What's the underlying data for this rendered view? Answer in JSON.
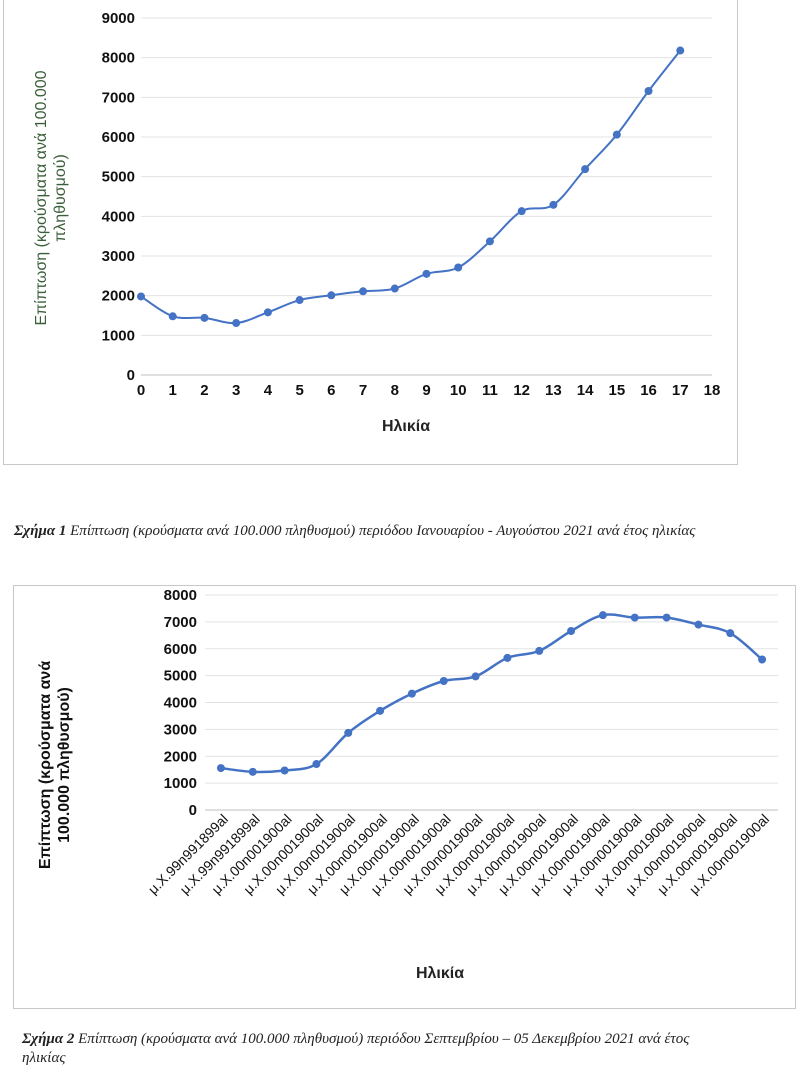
{
  "chart_data": [
    {
      "type": "line",
      "title": "",
      "xlabel": "Ηλικία",
      "ylabel": "Επίπτωση (κρούσματα ανά 100.000 πληθυσμού)",
      "ylabel_lines": [
        "Επίπτωση (κρούσματα ανά 100.000",
        "πληθυσμού)"
      ],
      "x": [
        0,
        1,
        2,
        3,
        4,
        5,
        6,
        7,
        8,
        9,
        10,
        11,
        12,
        13,
        14,
        15,
        16,
        17
      ],
      "values": [
        1980,
        1480,
        1440,
        1310,
        1580,
        1890,
        2010,
        2110,
        2180,
        2550,
        2710,
        3370,
        4130,
        4290,
        5190,
        6060,
        7160,
        8180
      ],
      "xlim": [
        0,
        18
      ],
      "ylim": [
        0,
        9000
      ],
      "xticks": [
        "0",
        "1",
        "2",
        "3",
        "4",
        "5",
        "6",
        "7",
        "8",
        "9",
        "10",
        "11",
        "12",
        "13",
        "14",
        "15",
        "16",
        "17",
        "18"
      ],
      "yticks": [
        "0",
        "1000",
        "2000",
        "3000",
        "4000",
        "5000",
        "6000",
        "7000",
        "8000",
        "9000"
      ],
      "grid": true,
      "color": "#4472c4"
    },
    {
      "type": "line",
      "title": "",
      "xlabel": "Ηλικία",
      "ylabel": "Επίπτωση (κρούσματα ανά 100.000 πληθυσμού)",
      "ylabel_lines": [
        "Επίπτωση (κρούσματα ανά",
        "100.000 πληθυσμού)"
      ],
      "categories": [
        "μ.Χ.99n991899al",
        "μ.Χ.99n991899al",
        "μ.Χ.00n001900al",
        "μ.Χ.00n001900al",
        "μ.Χ.00n001900al",
        "μ.Χ.00n001900al",
        "μ.Χ.00n001900al",
        "μ.Χ.00n001900al",
        "μ.Χ.00n001900al",
        "μ.Χ.00n001900al",
        "μ.Χ.00n001900al",
        "μ.Χ.00n001900al",
        "μ.Χ.00n001900al",
        "μ.Χ.00n001900al",
        "μ.Χ.00n001900al",
        "μ.Χ.00n001900al",
        "μ.Χ.00n001900al",
        "μ.Χ.00n001900al"
      ],
      "values": [
        1560,
        1420,
        1470,
        1710,
        2870,
        3690,
        4330,
        4800,
        4970,
        5660,
        5920,
        6660,
        7250,
        7160,
        7160,
        6900,
        6580,
        5600
      ],
      "ylim": [
        0,
        8000
      ],
      "yticks": [
        "0",
        "1000",
        "2000",
        "3000",
        "4000",
        "5000",
        "6000",
        "7000",
        "8000"
      ],
      "grid": true,
      "color": "#4472c4"
    }
  ],
  "captions": [
    {
      "label": "Σχήμα 1",
      "text": " Επίπτωση (κρούσματα ανά 100.000 πληθυσμού) περιόδου Ιανουαρίου - Αυγούστου 2021 ανά έτος ηλικίας"
    },
    {
      "label": "Σχήμα 2",
      "text": " Επίπτωση (κρούσματα ανά 100.000 πληθυσμού) περιόδου Σεπτεμβρίου – 05 Δεκεμβρίου 2021 ανά έτος ηλικίας"
    }
  ]
}
